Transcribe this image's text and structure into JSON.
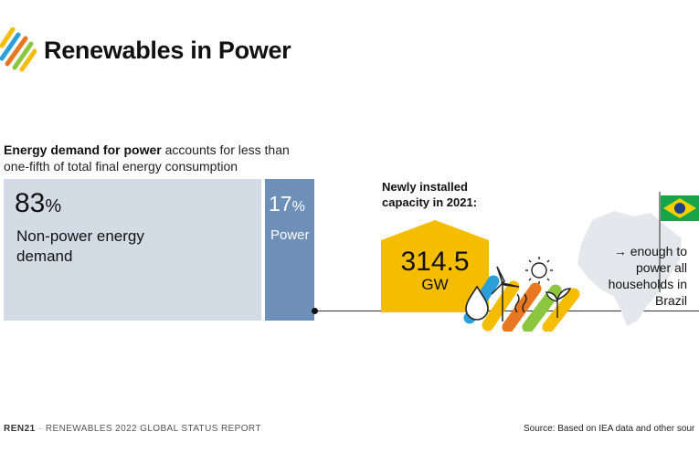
{
  "header": {
    "title": "Renewables in Power"
  },
  "lead": {
    "bold": "Energy demand for power",
    "rest": " accounts for less than one-fifth of total final energy consumption"
  },
  "nonpower": {
    "value": "83",
    "unit": "%",
    "label": "Non-power energy demand"
  },
  "power": {
    "value": "17",
    "unit": "%",
    "label": "Power"
  },
  "capacity": {
    "heading": "Newly installed capacity in 2021:",
    "value": "314.5",
    "unit": "GW"
  },
  "brazil": {
    "text": "→ enough to power all households in Brazil"
  },
  "footer": {
    "brand": "REN21",
    "report": "RENEWABLES 2022 GLOBAL STATUS REPORT",
    "source": "Source: Based on IEA data and other sour"
  },
  "colors": {
    "nonpower": "#d3dce4",
    "power": "#6e8fb8",
    "accent_yellow": "#f5bd00",
    "orange": "#e87722",
    "blue": "#2a9fd8",
    "green": "#8cc63f"
  },
  "icons": [
    "ren21-stripes-logo",
    "house-icon",
    "water-drop-icon",
    "wind-turbine-icon",
    "sun-icon",
    "plant-icon",
    "brazil-map-icon",
    "brazil-flag-icon"
  ]
}
